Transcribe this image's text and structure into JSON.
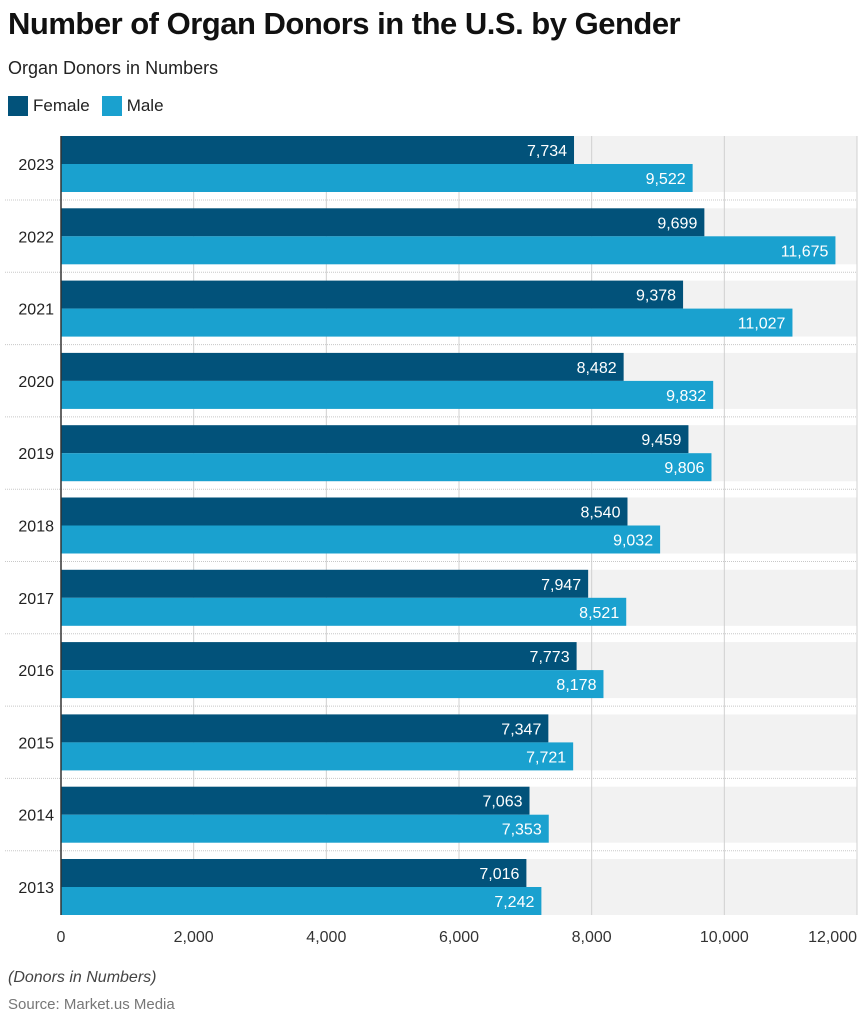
{
  "chart_data": {
    "type": "bar",
    "orientation": "horizontal",
    "title": "Number of Organ Donors in the U.S. by Gender",
    "subtitle": "Organ Donors in Numbers",
    "categories": [
      "2023",
      "2022",
      "2021",
      "2020",
      "2019",
      "2018",
      "2017",
      "2016",
      "2015",
      "2014",
      "2013"
    ],
    "series": [
      {
        "name": "Female",
        "color": "#02527a",
        "values": [
          7734,
          9699,
          9378,
          8482,
          9459,
          8540,
          7947,
          7773,
          7347,
          7063,
          7016
        ],
        "labels": [
          "7,734",
          "9,699",
          "9,378",
          "8,482",
          "9,459",
          "8,540",
          "7,947",
          "7,773",
          "7,347",
          "7,063",
          "7,016"
        ]
      },
      {
        "name": "Male",
        "color": "#1aa1cf",
        "values": [
          9522,
          11675,
          11027,
          9832,
          9806,
          9032,
          8521,
          8178,
          7721,
          7353,
          7242
        ],
        "labels": [
          "9,522",
          "11,675",
          "11,027",
          "9,832",
          "9,806",
          "9,032",
          "8,521",
          "8,178",
          "7,721",
          "7,353",
          "7,242"
        ]
      }
    ],
    "xlim": [
      0,
      12000
    ],
    "xticks": [
      0,
      2000,
      4000,
      6000,
      8000,
      10000,
      12000
    ],
    "xtick_labels": [
      "0",
      "2,000",
      "4,000",
      "6,000",
      "8,000",
      "10,000",
      "12,000"
    ],
    "grid": true,
    "legend_position": "top-left",
    "note": "(Donors in Numbers)",
    "source": "Source: Market.us Media"
  }
}
